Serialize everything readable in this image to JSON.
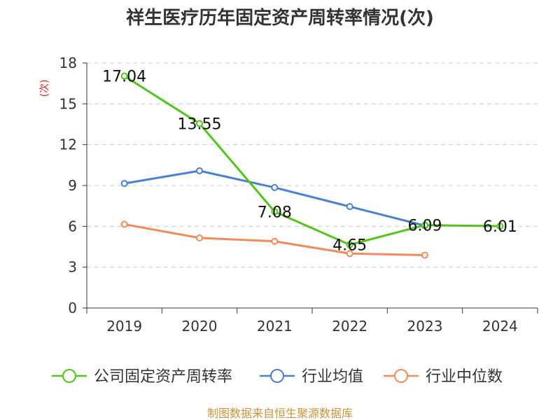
{
  "chart_data": {
    "type": "line",
    "title": "祥生医疗历年固定资产周转率情况(次)",
    "ylabel": "(次)",
    "xlabel": "",
    "categories": [
      "2019",
      "2020",
      "2021",
      "2022",
      "2023",
      "2024"
    ],
    "ylim": [
      0,
      18
    ],
    "yticks": [
      0,
      3,
      6,
      9,
      12,
      15,
      18
    ],
    "grid": true,
    "legend_position": "bottom",
    "series": [
      {
        "name": "公司固定资产周转率",
        "color": "#52c41a",
        "values": [
          17.04,
          13.55,
          7.08,
          4.65,
          6.09,
          6.01
        ],
        "labels": [
          "17.04",
          "13.55",
          "7.08",
          "4.65",
          "6.09",
          "6.01"
        ]
      },
      {
        "name": "行业均值",
        "color": "#4a7fd6",
        "values": [
          9.15,
          10.08,
          8.85,
          7.45,
          6.05,
          null
        ]
      },
      {
        "name": "行业中位数",
        "color": "#f28a5a",
        "values": [
          6.15,
          5.15,
          4.9,
          4.0,
          3.88,
          null
        ]
      }
    ],
    "source": "制图数据来自恒生聚源数据库"
  }
}
